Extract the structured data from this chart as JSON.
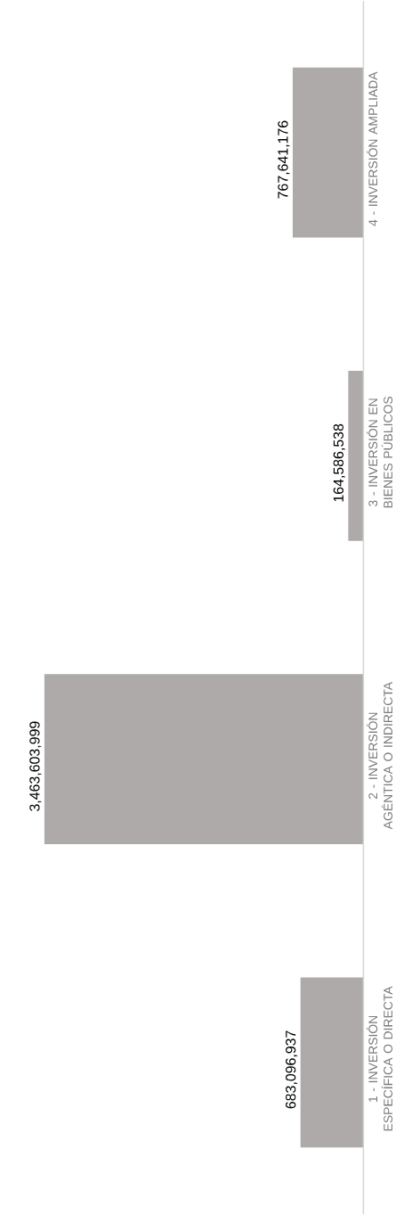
{
  "chart_data": {
    "type": "bar",
    "orientation": "horizontal",
    "categories": [
      "4 - INVERSIÓN AMPLIADA",
      "3 - INVERSIÓN EN BIENES PÚBLICOS",
      "2 - INVERSIÓN AGÉNTICA O INDIRECTA",
      "1 - INVERSIÓN ESPECÍFICA O DIRECTA"
    ],
    "values": [
      767641176,
      164586538,
      3463603999,
      683096937
    ],
    "value_labels": [
      "767,641,176",
      "164,586,538",
      "3,463,603,999",
      "683,096,937"
    ],
    "color": "#aeaaaa"
  }
}
